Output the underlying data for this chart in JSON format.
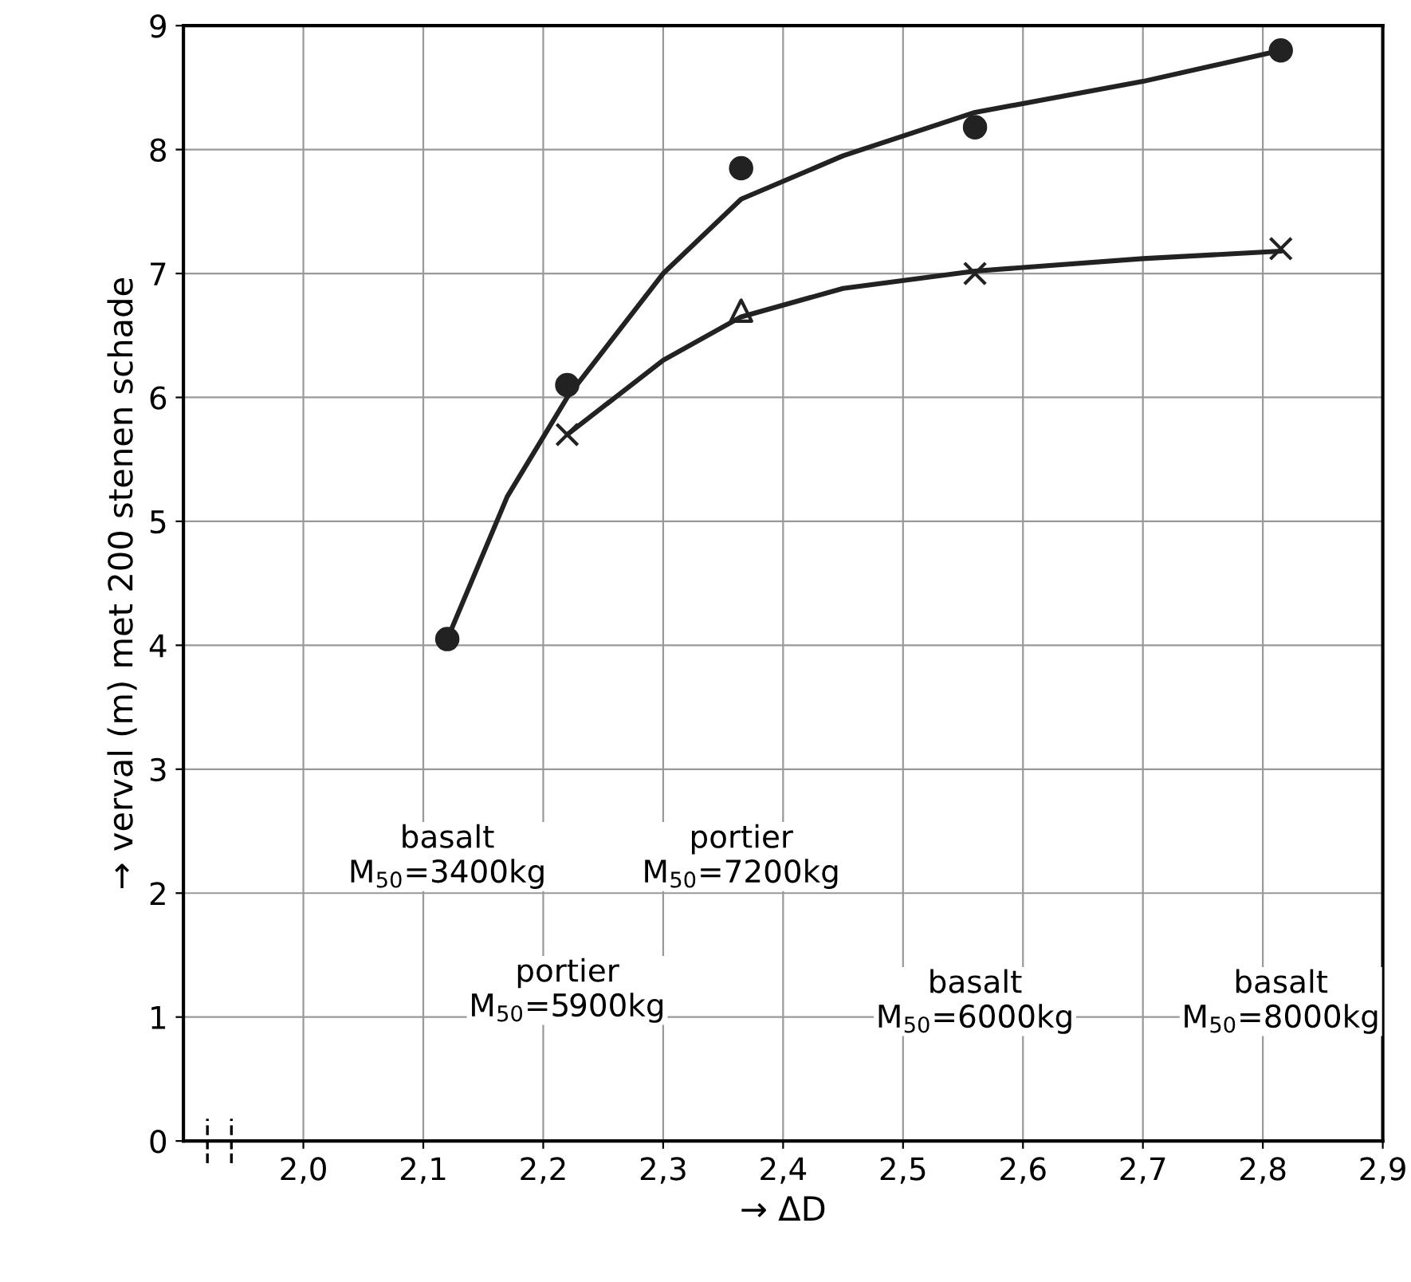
{
  "chart_data": {
    "type": "line",
    "xlabel": "→ ΔD",
    "ylabel": "→ verval (m) met 200 stenen schade",
    "xlim": [
      1.9,
      2.9
    ],
    "ylim": [
      0,
      9
    ],
    "xticks": [
      {
        "value": 2.0,
        "label": "2,0"
      },
      {
        "value": 2.1,
        "label": "2,1"
      },
      {
        "value": 2.2,
        "label": "2,2"
      },
      {
        "value": 2.3,
        "label": "2,3"
      },
      {
        "value": 2.4,
        "label": "2,4"
      },
      {
        "value": 2.5,
        "label": "2,5"
      },
      {
        "value": 2.6,
        "label": "2,6"
      },
      {
        "value": 2.7,
        "label": "2,7"
      },
      {
        "value": 2.8,
        "label": "2,8"
      },
      {
        "value": 2.9,
        "label": "2,9"
      }
    ],
    "yticks": [
      0,
      1,
      2,
      3,
      4,
      5,
      6,
      7,
      8,
      9
    ],
    "grid": true,
    "legend": false,
    "series": [
      {
        "color": "#222222",
        "marker": "none",
        "line_style": "solid",
        "x": [
          2.12,
          2.17,
          2.22,
          2.3,
          2.365,
          2.45,
          2.56,
          2.7,
          2.815
        ],
        "values": [
          4.05,
          5.2,
          6.0,
          7.0,
          7.6,
          7.95,
          8.3,
          8.55,
          8.8
        ]
      },
      {
        "color": "#222222",
        "marker": "none",
        "line_style": "solid",
        "x": [
          2.22,
          2.3,
          2.365,
          2.45,
          2.56,
          2.7,
          2.815
        ],
        "values": [
          5.7,
          6.3,
          6.65,
          6.88,
          7.02,
          7.12,
          7.18
        ]
      },
      {
        "type": "scatter",
        "color": "#222222",
        "marker": "circle",
        "x": [
          2.12,
          2.22,
          2.365,
          2.56,
          2.815
        ],
        "values": [
          4.05,
          6.1,
          7.85,
          8.18,
          8.8
        ]
      },
      {
        "type": "scatter",
        "color": "#222222",
        "marker": "cross",
        "x": [
          2.22,
          2.56,
          2.815
        ],
        "values": [
          5.7,
          7.0,
          7.2
        ]
      },
      {
        "type": "scatter",
        "color": "#222222",
        "marker": "triangle",
        "x": [
          2.365
        ],
        "values": [
          6.7
        ]
      }
    ],
    "annotations": [
      "basalt\nM$_{50}$=3400kg",
      "portier\nM$_{50}$=5900kg",
      "portier\nM$_{50}$=7200kg",
      "basalt\nM$_{50}$=6000kg",
      "basalt\nM$_{50}$=8000kg"
    ]
  }
}
